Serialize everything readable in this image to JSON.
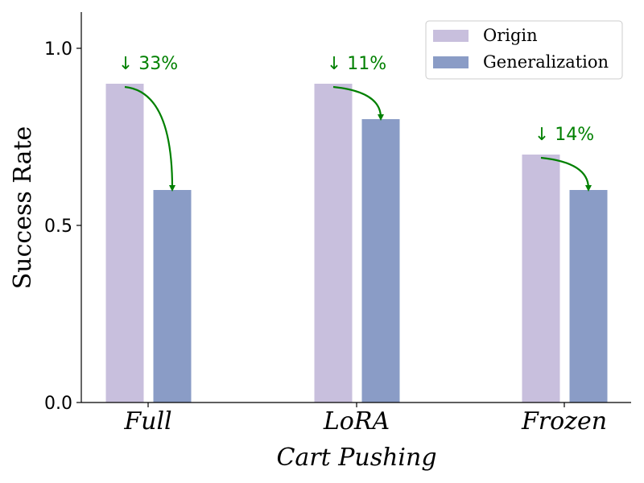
{
  "chart_data": {
    "type": "bar",
    "categories": [
      "Full",
      "LoRA",
      "Frozen"
    ],
    "series": [
      {
        "name": "Origin",
        "values": [
          0.9,
          0.9,
          0.7
        ],
        "color": "#c8bfdd"
      },
      {
        "name": "Generalization",
        "values": [
          0.6,
          0.8,
          0.6
        ],
        "color": "#8a9cc6"
      }
    ],
    "annotations": [
      "↓ 33%",
      "↓ 11%",
      "↓ 14%"
    ],
    "annotation_color": "#008000",
    "xlabel": "Cart Pushing",
    "ylabel": "Success Rate",
    "ylim": [
      0,
      1.1
    ],
    "yticks": [
      0.0,
      0.5,
      1.0
    ],
    "ytick_labels": [
      "0.0",
      "0.5",
      "1.0"
    ],
    "legend_position": "top-right"
  }
}
